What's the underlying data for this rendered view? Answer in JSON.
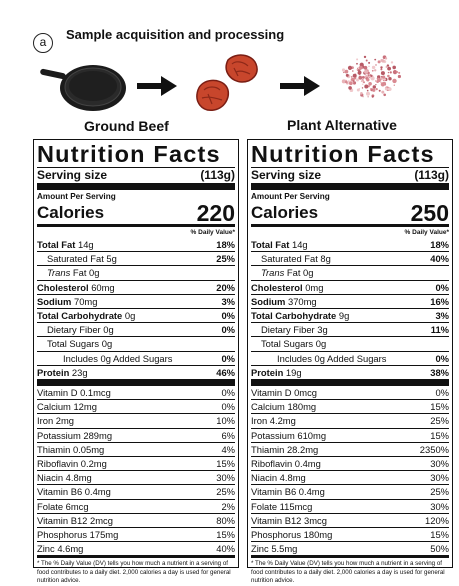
{
  "panel": {
    "letter": "a",
    "title": "Sample acquisition and processing"
  },
  "labels": {
    "left": "Ground Beef",
    "right": "Plant Alternative"
  },
  "colors": {
    "meat": "#c8462c",
    "meat_dark": "#7a1e14",
    "powder": "#d98a92",
    "pan": "#1b1b1b",
    "arrow": "#111111"
  },
  "icons": {
    "pan": "skillet-icon",
    "arrow": "arrow-right-icon",
    "patties": "meat-patties-icon",
    "powder": "powder-icon"
  },
  "nf_common": {
    "title": "Nutrition Facts",
    "serving_label": "Serving size",
    "amount_label": "Amount Per Serving",
    "calories_label": "Calories",
    "dv_header": "% Daily Value*",
    "footnote": "* The % Daily Value (DV) tells you how much a nutrient in a serving of food contributes to a daily diet. 2,000 calories a day is used for general nutrition advice."
  },
  "left": {
    "serving_size": "(113g)",
    "calories": "220",
    "macros": [
      {
        "label": "Total Fat",
        "value": "14g",
        "dv": "18%",
        "style": "b"
      },
      {
        "label": "Saturated Fat",
        "value": "5g",
        "dv": "25%",
        "style": "ind1"
      },
      {
        "label": "Trans",
        "value": "Fat 0g",
        "dv": "",
        "style": "ind1 trans"
      },
      {
        "label": "Cholesterol",
        "value": "60mg",
        "dv": "20%",
        "style": "b"
      },
      {
        "label": "Sodium",
        "value": "70mg",
        "dv": "3%",
        "style": "b"
      },
      {
        "label": "Total Carbohydrate",
        "value": "0g",
        "dv": "0%",
        "style": "b"
      },
      {
        "label": "Dietary Fiber",
        "value": "0g",
        "dv": "0%",
        "style": "ind1"
      },
      {
        "label": "Total Sugars",
        "value": "0g",
        "dv": "",
        "style": "ind1"
      },
      {
        "label": "Includes 0g Added Sugars",
        "value": "",
        "dv": "0%",
        "style": "ind2"
      }
    ],
    "protein": {
      "label": "Protein",
      "value": "23g",
      "dv": "46%"
    },
    "micros": [
      {
        "label": "Vitamin D 0.1mcg",
        "dv": "0%"
      },
      {
        "label": "Calcium 12mg",
        "dv": "0%"
      },
      {
        "label": "Iron 2mg",
        "dv": "10%"
      },
      {
        "label": "Potassium 289mg",
        "dv": "6%"
      },
      {
        "label": "Thiamin 0.05mg",
        "dv": "4%"
      },
      {
        "label": "Riboflavin 0.2mg",
        "dv": "15%"
      },
      {
        "label": "Niacin 4.8mg",
        "dv": "30%"
      },
      {
        "label": "Vitamin B6 0.4mg",
        "dv": "25%"
      },
      {
        "label": "Folate 6mcg",
        "dv": "2%"
      },
      {
        "label": "Vitamin B12 2mcg",
        "dv": "80%"
      },
      {
        "label": "Phosphorus 175mg",
        "dv": "15%"
      },
      {
        "label": "Zinc 4.6mg",
        "dv": "40%"
      }
    ]
  },
  "right": {
    "serving_size": "(113g)",
    "calories": "250",
    "macros": [
      {
        "label": "Total Fat",
        "value": "14g",
        "dv": "18%",
        "style": "b"
      },
      {
        "label": "Saturated Fat",
        "value": "8g",
        "dv": "40%",
        "style": "ind1"
      },
      {
        "label": "Trans",
        "value": "Fat 0g",
        "dv": "",
        "style": "ind1 trans"
      },
      {
        "label": "Cholesterol",
        "value": "0mg",
        "dv": "0%",
        "style": "b"
      },
      {
        "label": "Sodium",
        "value": "370mg",
        "dv": "16%",
        "style": "b"
      },
      {
        "label": "Total Carbohydrate",
        "value": "9g",
        "dv": "3%",
        "style": "b"
      },
      {
        "label": "Dietary Fiber",
        "value": "3g",
        "dv": "11%",
        "style": "ind1"
      },
      {
        "label": "Total Sugars",
        "value": "0g",
        "dv": "",
        "style": "ind1"
      },
      {
        "label": "Includes 0g Added Sugars",
        "value": "",
        "dv": "0%",
        "style": "ind2"
      }
    ],
    "protein": {
      "label": "Protein",
      "value": "19g",
      "dv": "38%"
    },
    "micros": [
      {
        "label": "Vitamin D 0mcg",
        "dv": "0%"
      },
      {
        "label": "Calcium 180mg",
        "dv": "15%"
      },
      {
        "label": "Iron 4.2mg",
        "dv": "25%"
      },
      {
        "label": "Potassium 610mg",
        "dv": "15%"
      },
      {
        "label": "Thiamin 28.2mg",
        "dv": "2350%"
      },
      {
        "label": "Riboflavin 0.4mg",
        "dv": "30%"
      },
      {
        "label": "Niacin 4.8mg",
        "dv": "30%"
      },
      {
        "label": "Vitamin B6 0.4mg",
        "dv": "25%"
      },
      {
        "label": "Folate 115mcg",
        "dv": "30%"
      },
      {
        "label": "Vitamin B12 3mcg",
        "dv": "120%"
      },
      {
        "label": "Phosphorus 180mg",
        "dv": "15%"
      },
      {
        "label": "Zinc 5.5mg",
        "dv": "50%"
      }
    ]
  }
}
